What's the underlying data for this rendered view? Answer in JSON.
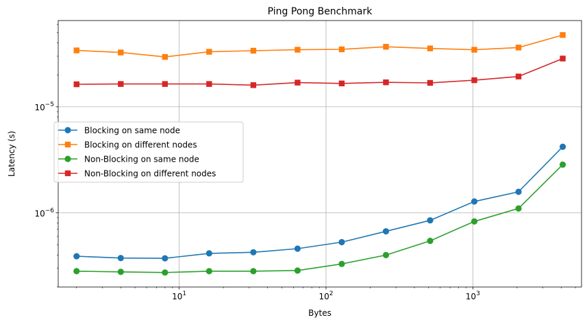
{
  "chart_data": {
    "type": "line",
    "title": "Ping Pong Benchmark",
    "xlabel": "Bytes",
    "ylabel": "Latency (s)",
    "xscale": "log",
    "yscale": "log",
    "xlim": [
      1.5,
      5500
    ],
    "ylim": [
      2e-07,
      6.5e-05
    ],
    "grid": true,
    "legend_position": "center-left",
    "x": [
      2,
      4,
      8,
      16,
      32,
      64,
      128,
      256,
      512,
      1024,
      2048,
      4096
    ],
    "x_ticks": [
      {
        "value": 10,
        "base": "10",
        "exp": "1"
      },
      {
        "value": 100,
        "base": "10",
        "exp": "2"
      },
      {
        "value": 1000,
        "base": "10",
        "exp": "3"
      }
    ],
    "y_ticks": [
      {
        "value": 1e-06,
        "base": "10",
        "exp": "−6"
      },
      {
        "value": 1e-05,
        "base": "10",
        "exp": "−5"
      }
    ],
    "series": [
      {
        "name": "Blocking on same node",
        "color": "#1f77b4",
        "marker": "circle",
        "values": [
          3.9e-07,
          3.75e-07,
          3.73e-07,
          4.15e-07,
          4.25e-07,
          4.6e-07,
          5.3e-07,
          6.7e-07,
          8.5e-07,
          1.28e-06,
          1.58e-06,
          4.2e-06
        ]
      },
      {
        "name": "Blocking on different nodes",
        "color": "#ff7f0e",
        "marker": "square",
        "values": [
          3.4e-05,
          3.25e-05,
          2.95e-05,
          3.3e-05,
          3.38e-05,
          3.45e-05,
          3.48e-05,
          3.68e-05,
          3.55e-05,
          3.45e-05,
          3.62e-05,
          4.75e-05
        ]
      },
      {
        "name": "Non-Blocking on same node",
        "color": "#2ca02c",
        "marker": "circle",
        "values": [
          2.82e-07,
          2.78e-07,
          2.74e-07,
          2.82e-07,
          2.82e-07,
          2.86e-07,
          3.3e-07,
          4e-07,
          5.45e-07,
          8.3e-07,
          1.1e-06,
          2.85e-06
        ]
      },
      {
        "name": "Non-Blocking on different nodes",
        "color": "#d62728",
        "marker": "square",
        "values": [
          1.63e-05,
          1.64e-05,
          1.64e-05,
          1.64e-05,
          1.6e-05,
          1.69e-05,
          1.66e-05,
          1.7e-05,
          1.68e-05,
          1.78e-05,
          1.93e-05,
          2.85e-05
        ]
      }
    ]
  }
}
